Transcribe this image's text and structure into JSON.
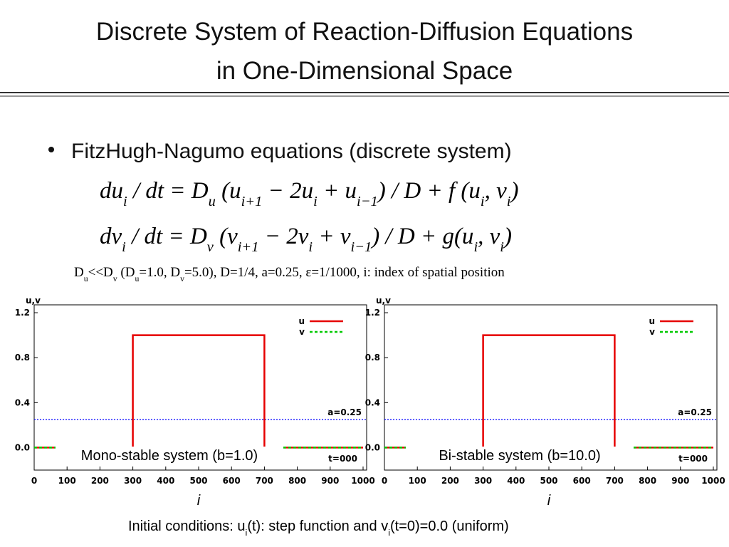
{
  "title_lines": [
    "Discrete System of Reaction-Diffusion Equations",
    "in One-Dimensional Space"
  ],
  "bullet": "FitzHugh-Nagumo equations (discrete system)",
  "equations": [
    [
      "du",
      "i",
      " / dt = D",
      "u",
      " (u",
      "i+1",
      " − 2u",
      "i",
      " + u",
      "i−1",
      ") / D + f (u",
      "i",
      ", v",
      "i",
      ")"
    ],
    [
      "dv",
      "i",
      " / dt = D",
      "v",
      " (v",
      "i+1",
      " − 2v",
      "i",
      " + v",
      "i−1",
      ") / D + g(u",
      "i",
      ", v",
      "i",
      ")"
    ]
  ],
  "parameters": [
    "D",
    "u",
    "<<D",
    "v",
    " (D",
    "u",
    "=1.0, D",
    "v",
    "=5.0), D=1/4, a=0.25, ε=1/1000, i: index of spatial position"
  ],
  "initial_conditions": [
    "Initial conditions: u",
    "i",
    "(t): step function and v",
    "i",
    "(t=0)=0.0 (uniform)"
  ],
  "chart_data": [
    {
      "type": "line",
      "ylabel": "u,v",
      "xlabel": "i",
      "caption": "Mono-stable system (b=1.0)",
      "annotation": "t=000",
      "x": [
        0,
        300,
        300,
        700,
        700,
        1000
      ],
      "series": [
        {
          "name": "u",
          "color": "#e60000",
          "style": "solid",
          "values": [
            0,
            0,
            1,
            1,
            0,
            0
          ]
        },
        {
          "name": "v",
          "color": "#00c800",
          "style": "dashed",
          "values": [
            0,
            0,
            0,
            0,
            0,
            0
          ]
        }
      ],
      "hlines": [
        {
          "value": 0.25,
          "label": "a=0.25",
          "color": "#0000ff"
        }
      ],
      "xlim": [
        0,
        1000
      ],
      "ylim": [
        -0.2,
        1.27
      ],
      "xticks": [
        0,
        100,
        200,
        300,
        400,
        500,
        600,
        700,
        800,
        900,
        1000
      ],
      "yticks": [
        {
          "value": 0,
          "label": "0.0"
        },
        0.4,
        0.8,
        1.2
      ],
      "legend": "upper right"
    },
    {
      "type": "line",
      "ylabel": "u,v",
      "xlabel": "i",
      "caption": "Bi-stable system (b=10.0)",
      "annotation": "t=000",
      "x": [
        0,
        300,
        300,
        700,
        700,
        1000
      ],
      "series": [
        {
          "name": "u",
          "color": "#e60000",
          "style": "solid",
          "values": [
            0,
            0,
            1,
            1,
            0,
            0
          ]
        },
        {
          "name": "v",
          "color": "#00c800",
          "style": "dashed",
          "values": [
            0,
            0,
            0,
            0,
            0,
            0
          ]
        }
      ],
      "hlines": [
        {
          "value": 0.25,
          "label": "a=0.25",
          "color": "#0000ff"
        }
      ],
      "xlim": [
        0,
        1000
      ],
      "ylim": [
        -0.2,
        1.27
      ],
      "xticks": [
        0,
        100,
        200,
        300,
        400,
        500,
        600,
        700,
        800,
        900,
        1000
      ],
      "yticks": [
        {
          "value": 0,
          "label": "0.0"
        },
        0.4,
        0.8,
        1.2
      ],
      "legend": "upper right"
    }
  ]
}
